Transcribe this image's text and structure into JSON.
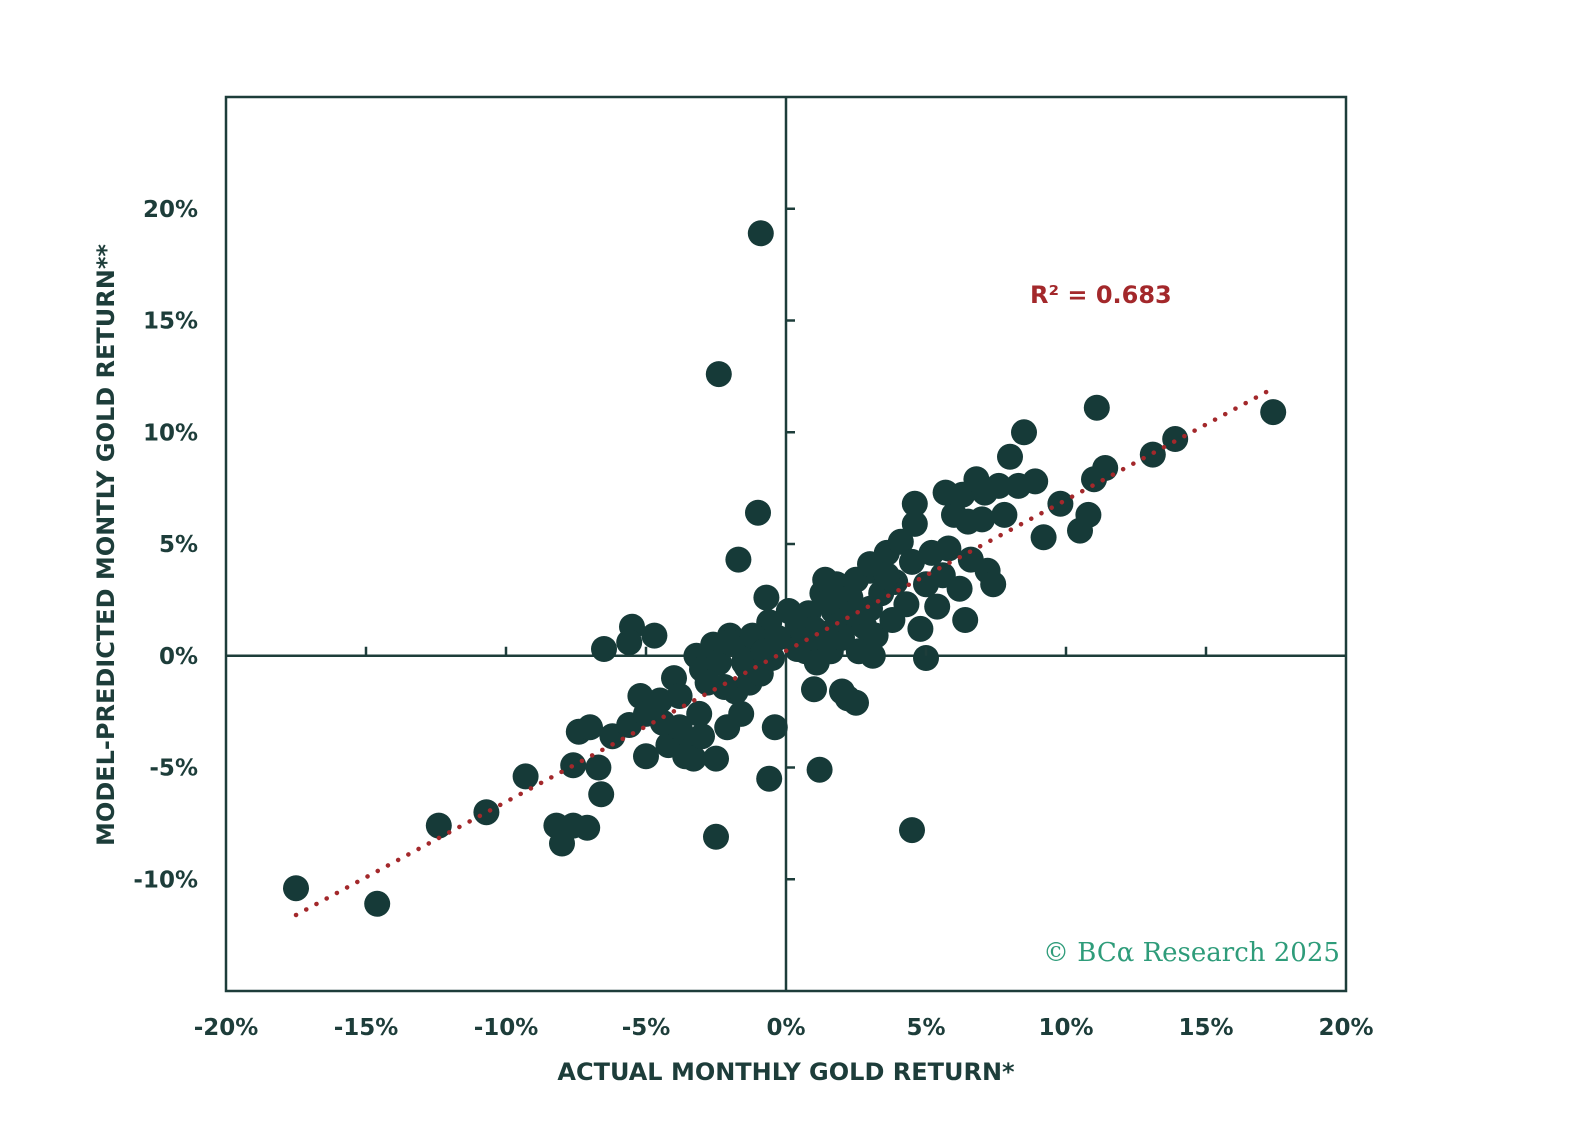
{
  "chart_data": {
    "type": "scatter",
    "xlabel": "ACTUAL MONTHLY GOLD RETURN*",
    "ylabel": "MODEL-PREDICTED MONTLY GOLD RETURN**",
    "xlim": [
      -20,
      20
    ],
    "ylim": [
      -15,
      25
    ],
    "x_ticks": [
      -20,
      -15,
      -10,
      -5,
      0,
      5,
      10,
      15,
      20
    ],
    "y_ticks": [
      -10,
      -5,
      0,
      5,
      10,
      15,
      20
    ],
    "x_tick_labels": [
      "-20%",
      "-15%",
      "-10%",
      "-5%",
      "0%",
      "5%",
      "10%",
      "15%",
      "20%"
    ],
    "y_tick_labels": [
      "-10%",
      "-5%",
      "0%",
      "5%",
      "10%",
      "15%",
      "20%"
    ],
    "annotation": "R² = 0.683",
    "trendline": {
      "x": [
        -17.5,
        17.3
      ],
      "y": [
        -11.6,
        11.9
      ],
      "style": "dotted"
    },
    "colors": {
      "points": "#163a38",
      "trendline": "#a3282b",
      "axes": "#1d3d3a",
      "copyright": "#2e9c7a"
    },
    "points": [
      [
        -17.5,
        -10.4
      ],
      [
        -14.6,
        -11.1
      ],
      [
        -12.4,
        -7.6
      ],
      [
        -10.7,
        -7.0
      ],
      [
        -9.3,
        -5.4
      ],
      [
        -8.2,
        -7.6
      ],
      [
        -8.0,
        -8.4
      ],
      [
        -7.6,
        -7.6
      ],
      [
        -7.1,
        -7.7
      ],
      [
        -7.6,
        -4.9
      ],
      [
        -7.4,
        -3.4
      ],
      [
        -7.0,
        -3.2
      ],
      [
        -6.6,
        -6.2
      ],
      [
        -6.7,
        -5.0
      ],
      [
        -6.5,
        0.3
      ],
      [
        -5.5,
        1.3
      ],
      [
        -5.6,
        0.6
      ],
      [
        -4.7,
        0.9
      ],
      [
        -5.2,
        -1.8
      ],
      [
        -5.0,
        -4.5
      ],
      [
        -6.2,
        -3.6
      ],
      [
        -5.6,
        -3.1
      ],
      [
        -5.0,
        -2.6
      ],
      [
        -4.5,
        -2.0
      ],
      [
        -4.0,
        -1.0
      ],
      [
        -4.2,
        -4.0
      ],
      [
        -3.6,
        -3.8
      ],
      [
        -3.6,
        -4.5
      ],
      [
        -3.3,
        -4.6
      ],
      [
        -3.1,
        -2.6
      ],
      [
        -3.8,
        -3.2
      ],
      [
        -3.2,
        0.0
      ],
      [
        -3.0,
        -0.6
      ],
      [
        -2.6,
        0.5
      ],
      [
        -2.4,
        -0.3
      ],
      [
        -2.5,
        -4.6
      ],
      [
        -2.5,
        -8.1
      ],
      [
        -2.0,
        0.9
      ],
      [
        -2.1,
        -3.2
      ],
      [
        -1.8,
        -1.6
      ],
      [
        -1.6,
        -2.6
      ],
      [
        -1.4,
        -0.5
      ],
      [
        -1.3,
        -1.2
      ],
      [
        -1.2,
        0.4
      ],
      [
        -0.9,
        -0.8
      ],
      [
        -0.6,
        1.5
      ],
      [
        -0.7,
        0.6
      ],
      [
        -0.5,
        -0.1
      ],
      [
        -0.4,
        -3.2
      ],
      [
        -0.6,
        -5.5
      ],
      [
        -0.7,
        2.6
      ],
      [
        -1.7,
        4.3
      ],
      [
        -1.0,
        6.4
      ],
      [
        -2.4,
        12.6
      ],
      [
        -0.9,
        18.9
      ],
      [
        0.3,
        0.8
      ],
      [
        0.4,
        1.6
      ],
      [
        0.7,
        0.2
      ],
      [
        0.8,
        1.9
      ],
      [
        1.0,
        1.2
      ],
      [
        1.2,
        0.4
      ],
      [
        1.3,
        2.8
      ],
      [
        1.4,
        3.4
      ],
      [
        1.5,
        1.0
      ],
      [
        1.6,
        0.2
      ],
      [
        1.7,
        2.0
      ],
      [
        1.8,
        3.2
      ],
      [
        2.0,
        0.8
      ],
      [
        2.1,
        1.6
      ],
      [
        2.3,
        2.6
      ],
      [
        2.5,
        3.4
      ],
      [
        2.6,
        0.2
      ],
      [
        2.8,
        1.3
      ],
      [
        3.0,
        2.1
      ],
      [
        3.0,
        3.8
      ],
      [
        3.2,
        0.9
      ],
      [
        3.4,
        2.8
      ],
      [
        3.6,
        4.6
      ],
      [
        3.8,
        1.6
      ],
      [
        3.9,
        3.3
      ],
      [
        4.1,
        5.1
      ],
      [
        4.3,
        2.3
      ],
      [
        4.5,
        4.2
      ],
      [
        4.6,
        6.8
      ],
      [
        4.8,
        1.2
      ],
      [
        5.0,
        3.2
      ],
      [
        5.2,
        4.6
      ],
      [
        5.4,
        2.2
      ],
      [
        5.6,
        3.6
      ],
      [
        5.8,
        4.8
      ],
      [
        6.0,
        6.3
      ],
      [
        6.2,
        3.0
      ],
      [
        6.3,
        7.2
      ],
      [
        6.4,
        1.6
      ],
      [
        6.6,
        4.3
      ],
      [
        6.8,
        7.9
      ],
      [
        7.0,
        6.1
      ],
      [
        7.2,
        3.8
      ],
      [
        7.4,
        3.2
      ],
      [
        7.6,
        7.6
      ],
      [
        7.8,
        6.3
      ],
      [
        8.0,
        8.9
      ],
      [
        8.3,
        7.6
      ],
      [
        8.5,
        10.0
      ],
      [
        8.9,
        7.8
      ],
      [
        9.2,
        5.3
      ],
      [
        9.8,
        6.8
      ],
      [
        10.5,
        5.6
      ],
      [
        10.8,
        6.3
      ],
      [
        11.0,
        7.9
      ],
      [
        11.4,
        8.4
      ],
      [
        11.1,
        11.1
      ],
      [
        13.1,
        9.0
      ],
      [
        13.9,
        9.7
      ],
      [
        17.4,
        10.9
      ],
      [
        4.5,
        -7.8
      ],
      [
        1.2,
        -5.1
      ],
      [
        5.0,
        -0.1
      ],
      [
        2.5,
        -2.1
      ],
      [
        1.0,
        -1.5
      ],
      [
        -2.0,
        0.6
      ],
      [
        -1.2,
        0.9
      ],
      [
        0.1,
        2.0
      ],
      [
        0.6,
        0.7
      ],
      [
        1.1,
        -0.3
      ],
      [
        2.0,
        -1.6
      ],
      [
        2.2,
        -1.9
      ],
      [
        3.1,
        0.0
      ],
      [
        2.4,
        1.9
      ],
      [
        3.6,
        3.6
      ],
      [
        4.6,
        5.9
      ],
      [
        5.7,
        7.3
      ],
      [
        6.5,
        6.0
      ],
      [
        7.1,
        7.3
      ],
      [
        3.0,
        4.1
      ],
      [
        -1.5,
        -0.3
      ],
      [
        -0.8,
        0.2
      ],
      [
        -0.3,
        0.8
      ],
      [
        0.4,
        0.3
      ],
      [
        1.5,
        2.4
      ],
      [
        -4.4,
        -3.0
      ],
      [
        -3.8,
        -1.8
      ],
      [
        -2.8,
        -1.2
      ],
      [
        -2.2,
        -1.4
      ],
      [
        -3.0,
        -3.6
      ]
    ]
  },
  "copyright": "© BCα Research 2025"
}
